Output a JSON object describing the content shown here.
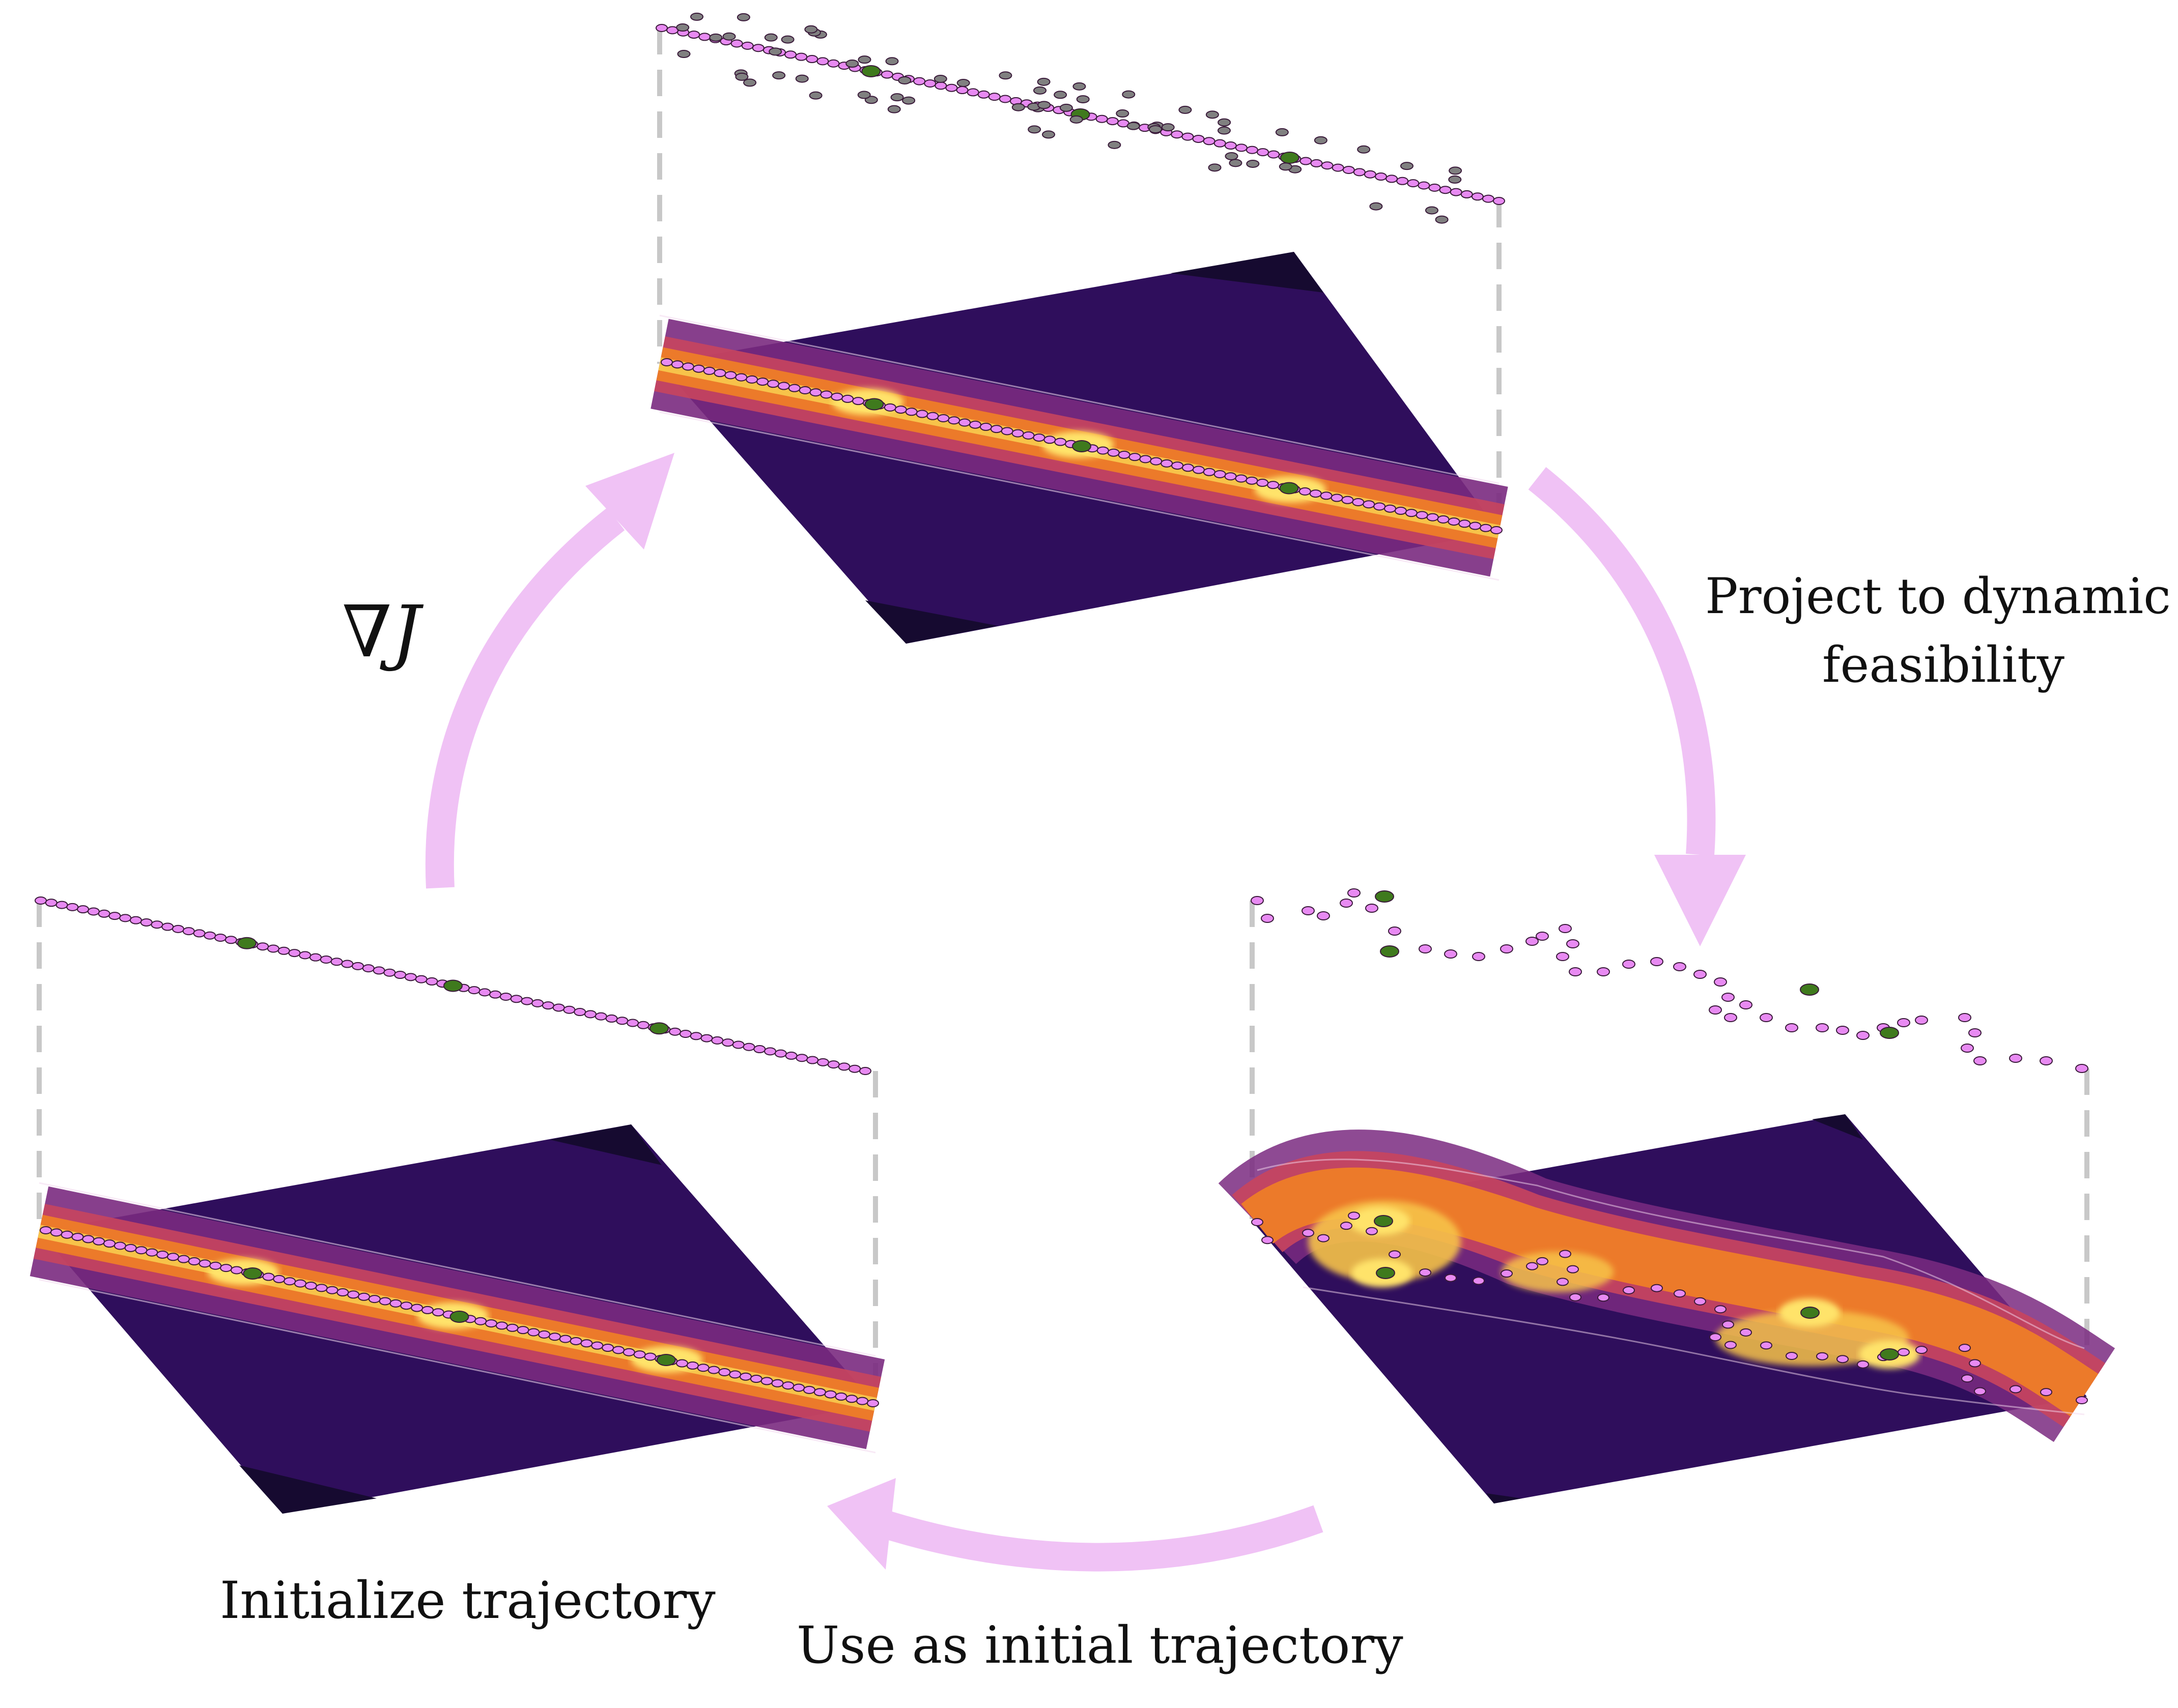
{
  "labels": {
    "gradient": "∇J",
    "project_line1": "Project to dynamic",
    "project_line2": "feasibility",
    "initialize": "Initialize trajectory",
    "use_initial": "Use as initial trajectory"
  },
  "colors": {
    "arrow": "#f0c2f5",
    "plane_bg": "#2f0e5c",
    "plane_corner": "#160a30",
    "band_outer": "#7a2a80",
    "band_mid": "#c8455e",
    "band_inner": "#ec7a2a",
    "band_core": "#f7c34a",
    "band_peak": "#ffe36a",
    "waypoint_pink": "#e88af2",
    "waypoint_green": "#3f7a1d",
    "sample_gray": "#808080",
    "dashed_guide": "#c8c8c8"
  },
  "panels": [
    {
      "id": "top",
      "role": "gradient step"
    },
    {
      "id": "left",
      "role": "initial trajectory"
    },
    {
      "id": "right",
      "role": "projected trajectory"
    }
  ]
}
